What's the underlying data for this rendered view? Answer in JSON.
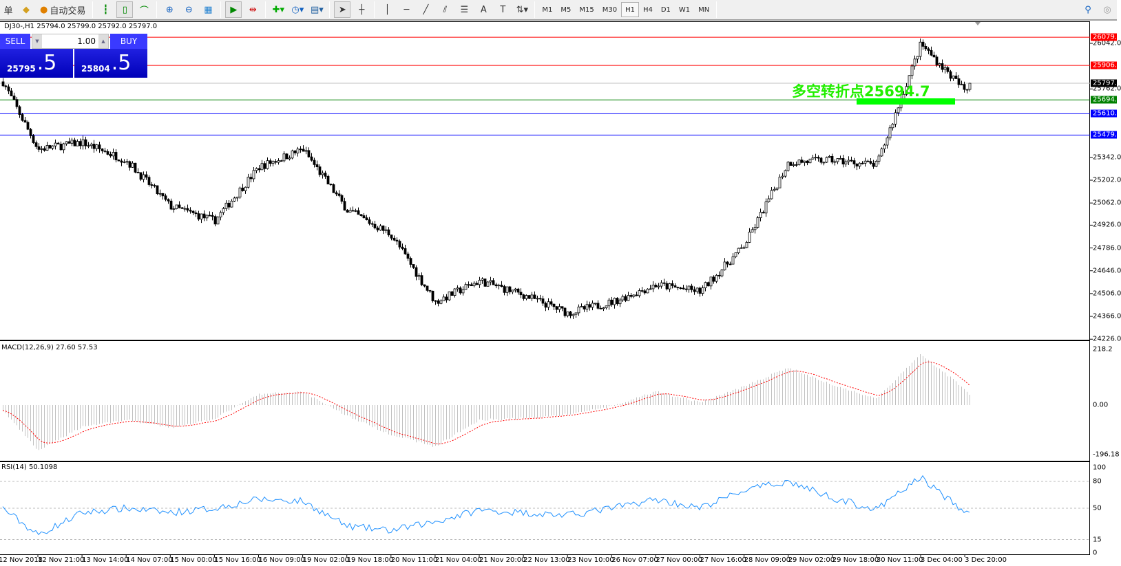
{
  "toolbar": {
    "new_order_fragment": "单",
    "auto_trading_label": "自动交易",
    "icons": [
      "gold-bars-icon",
      "auto-trading-icon",
      "bar-chart-icon",
      "candlestick-icon",
      "line-chart-icon",
      "zoom-in-icon",
      "zoom-out-icon",
      "tile-windows-icon",
      "auto-scroll-icon",
      "chart-shift-icon",
      "indicators-icon",
      "periods-clock-icon",
      "templates-icon",
      "cursor-icon",
      "crosshair-icon",
      "vertical-line-icon",
      "horizontal-line-icon",
      "trendline-icon",
      "fibo-channel-icon",
      "fibo-retracement-icon",
      "text-icon",
      "text-label-icon",
      "arrows-icon"
    ],
    "timeframes": [
      "M1",
      "M5",
      "M15",
      "M30",
      "H1",
      "H4",
      "D1",
      "W1",
      "MN"
    ],
    "active_timeframe": "H1"
  },
  "chart": {
    "header": "DJ30-,H1  25794.0 25799.0 25792.0 25797.0",
    "annotation": "多空转折点25694.7",
    "annotation_color": "#22ee00"
  },
  "trade_panel": {
    "sell_label": "SELL",
    "buy_label": "BUY",
    "lot": "1.00",
    "sell_main": "25795",
    "sell_frac": ".5",
    "buy_main": "25804",
    "buy_frac": ".5"
  },
  "price_axis": [
    "26042.0",
    "25762.0",
    "25342.0",
    "25202.0",
    "25062.0",
    "24926.0",
    "24786.0",
    "24646.0",
    "24506.0",
    "24366.0",
    "24226.0"
  ],
  "price_lines": [
    {
      "value": "26079.7",
      "color": "#ff0000"
    },
    {
      "value": "25906.2",
      "color": "#ff0000"
    },
    {
      "value": "25797.0",
      "color": "#000000",
      "line": "#c0c0c0"
    },
    {
      "value": "25694.7",
      "color": "#008000"
    },
    {
      "value": "25610.1",
      "color": "#0000ff"
    },
    {
      "value": "25479.0",
      "color": "#0000ff"
    }
  ],
  "macd": {
    "label": "MACD(12,26,9) 27.60 57.53",
    "axis": [
      "218.2",
      "0.00",
      "-196.18"
    ]
  },
  "rsi": {
    "label": "RSI(14) 50.1098",
    "axis": [
      "100",
      "80",
      "50",
      "15",
      "0"
    ],
    "levels": [
      80,
      50,
      15
    ]
  },
  "time_axis": [
    "12 Nov 2018",
    "12 Nov 21:00",
    "13 Nov 14:00",
    "14 Nov 07:00",
    "15 Nov 00:00",
    "15 Nov 16:00",
    "16 Nov 09:00",
    "19 Nov 02:00",
    "19 Nov 18:00",
    "20 Nov 11:00",
    "21 Nov 04:00",
    "21 Nov 20:00",
    "22 Nov 13:00",
    "23 Nov 10:00",
    "26 Nov 07:00",
    "27 Nov 00:00",
    "27 Nov 16:00",
    "28 Nov 09:00",
    "29 Nov 02:00",
    "29 Nov 18:00",
    "30 Nov 11:00",
    "3 Dec 04:00",
    "3 Dec 20:00"
  ],
  "chart_data": {
    "type": "candlestick",
    "symbol": "DJ30-",
    "timeframe": "H1",
    "ylim": [
      24226,
      26080
    ],
    "approx_close_at_time_labels": [
      25806,
      25392,
      25434,
      25324,
      25041,
      24953,
      25282,
      25392,
      25020,
      24868,
      24454,
      24585,
      24497,
      24387,
      24454,
      24560,
      24518,
      24801,
      25312,
      25325,
      25295,
      26038,
      25750
    ],
    "last_close": 25797.0,
    "macd_hist_at_time_labels": [
      -20,
      -170,
      -80,
      -55,
      -85,
      -50,
      40,
      50,
      -40,
      -110,
      -155,
      -55,
      -50,
      -35,
      -5,
      50,
      10,
      70,
      140,
      75,
      25,
      190,
      60
    ],
    "macd_last": 27.6,
    "macd_signal_last": 57.53,
    "macd_ylim": [
      -196.18,
      218.2
    ],
    "rsi_at_time_labels": [
      50,
      20,
      45,
      50,
      45,
      50,
      60,
      58,
      30,
      25,
      35,
      48,
      45,
      42,
      50,
      60,
      50,
      70,
      80,
      62,
      48,
      85,
      45
    ],
    "rsi_last": 50.1098,
    "rsi_ylim": [
      0,
      100
    ]
  }
}
